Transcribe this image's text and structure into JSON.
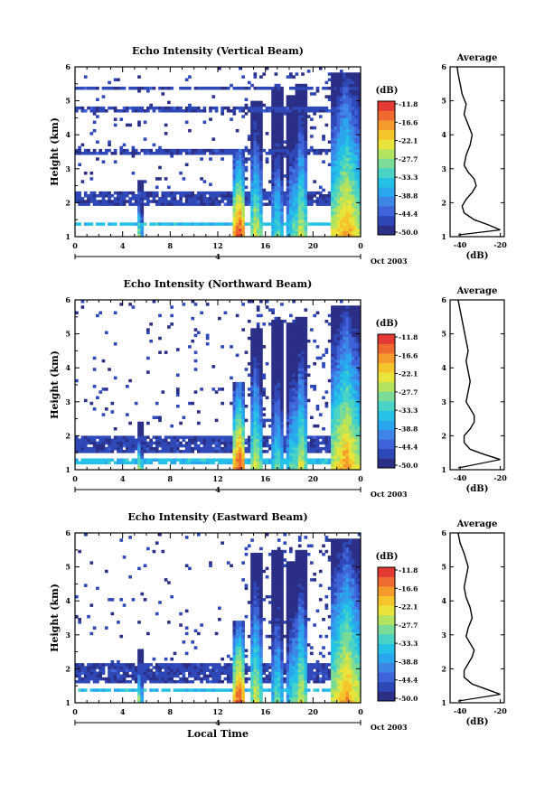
{
  "colorbar": {
    "unit_label": "(dB)",
    "ticks": [
      "-11.8",
      "-16.6",
      "-22.1",
      "-27.7",
      "-33.3",
      "-38.8",
      "-44.4",
      "-50.0"
    ],
    "colors": [
      "#2b2f86",
      "#2f48b8",
      "#3f63d8",
      "#3d86e6",
      "#2aa6ee",
      "#25c2e6",
      "#49d3c4",
      "#7bdc98",
      "#b4e35f",
      "#e8e43b",
      "#f5c52d",
      "#f59a2c",
      "#ef6a2e",
      "#e33a33"
    ]
  },
  "panels": [
    {
      "title": "Echo Intensity (Vertical Beam)",
      "ylabel": "Height (km)",
      "y_ticks": [
        "1",
        "2",
        "3",
        "4",
        "5",
        "6"
      ],
      "x_ticks": [
        "0",
        "4",
        "8",
        "12",
        "16",
        "20",
        "0"
      ],
      "date_tick": "4",
      "date_label": "Oct 2003",
      "avg_title": "Average",
      "avg_x_ticks": [
        "-40",
        "-20"
      ],
      "avg_xlabel": "(dB)",
      "avg_y_ticks": [
        "1",
        "2",
        "3",
        "4",
        "5",
        "6"
      ]
    },
    {
      "title": "Echo Intensity (Northward Beam)",
      "ylabel": "Height (km)",
      "y_ticks": [
        "1",
        "2",
        "3",
        "4",
        "5",
        "6"
      ],
      "x_ticks": [
        "0",
        "4",
        "8",
        "12",
        "16",
        "20",
        "0"
      ],
      "date_tick": "4",
      "date_label": "Oct 2003",
      "avg_title": "Average",
      "avg_x_ticks": [
        "-40",
        "-20"
      ],
      "avg_xlabel": "(dB)",
      "avg_y_ticks": [
        "1",
        "2",
        "3",
        "4",
        "5",
        "6"
      ]
    },
    {
      "title": "Echo Intensity (Eastward Beam)",
      "ylabel": "Height (km)",
      "y_ticks": [
        "1",
        "2",
        "3",
        "4",
        "5",
        "6"
      ],
      "x_ticks": [
        "0",
        "4",
        "8",
        "12",
        "16",
        "20",
        "0"
      ],
      "date_tick": "4",
      "date_label": "Oct 2003",
      "avg_title": "Average",
      "avg_x_ticks": [
        "-40",
        "-20"
      ],
      "avg_xlabel": "(dB)",
      "avg_y_ticks": [
        "1",
        "2",
        "3",
        "4",
        "5",
        "6"
      ],
      "xlabel": "Local Time"
    }
  ],
  "chart_data": [
    {
      "type": "heatmap",
      "title": "Echo Intensity (Vertical Beam)",
      "xlabel": "",
      "ylabel": "Height (km)",
      "xlim": [
        0,
        24
      ],
      "ylim": [
        1,
        6
      ],
      "colorbar_range": [
        -50.0,
        -11.8
      ],
      "echo_events": [
        {
          "time": 5.4,
          "top": 2.7,
          "peak": -27.7
        },
        {
          "time": 13.8,
          "top": 3.6,
          "peak": -11.8
        },
        {
          "time": 15.2,
          "top": 5.0,
          "peak": -22.1
        },
        {
          "time": 17.0,
          "top": 5.4,
          "peak": -27.7
        },
        {
          "time": 18.3,
          "top": 5.2,
          "peak": -27.7
        },
        {
          "time": 19.0,
          "top": 5.5,
          "peak": -22.1
        },
        {
          "time": 22.8,
          "top": 5.8,
          "peak": -16.6
        }
      ],
      "clear_air_layers": [
        {
          "bottom": 1.35,
          "top": 1.45,
          "level": -33.3
        },
        {
          "bottom": 1.9,
          "top": 2.35,
          "level": -44.4
        },
        {
          "bottom": 3.4,
          "top": 3.55,
          "level": -44.4
        },
        {
          "bottom": 4.7,
          "top": 4.8,
          "level": -44.4
        },
        {
          "bottom": 5.3,
          "top": 5.4,
          "level": -44.4
        }
      ]
    },
    {
      "type": "line",
      "title": "Average",
      "xlabel": "(dB)",
      "xlim": [
        -45,
        -18
      ],
      "ylim": [
        1,
        6
      ],
      "x": [
        -20,
        -26,
        -33,
        -38,
        -39,
        -37,
        -34,
        -32,
        -33,
        -36,
        -38,
        -37,
        -35,
        -34,
        -36,
        -38,
        -37,
        -39,
        -40,
        -41,
        -41.5
      ],
      "y": [
        1.2,
        1.35,
        1.5,
        1.7,
        1.9,
        2.1,
        2.3,
        2.5,
        2.7,
        2.9,
        3.1,
        3.4,
        3.7,
        4.0,
        4.3,
        4.6,
        4.9,
        5.2,
        5.5,
        5.8,
        6.0
      ]
    },
    {
      "type": "heatmap",
      "title": "Echo Intensity (Northward Beam)",
      "xlabel": "",
      "ylabel": "Height (km)",
      "xlim": [
        0,
        24
      ],
      "ylim": [
        1,
        6
      ],
      "colorbar_range": [
        -50.0,
        -11.8
      ],
      "echo_events": [
        {
          "time": 5.4,
          "top": 2.4,
          "peak": -27.7
        },
        {
          "time": 13.8,
          "top": 3.6,
          "peak": -11.8
        },
        {
          "time": 15.2,
          "top": 5.2,
          "peak": -22.1
        },
        {
          "time": 17.0,
          "top": 5.4,
          "peak": -27.7
        },
        {
          "time": 18.3,
          "top": 5.3,
          "peak": -27.7
        },
        {
          "time": 19.0,
          "top": 5.5,
          "peak": -22.1
        },
        {
          "time": 22.8,
          "top": 5.8,
          "peak": -16.6
        }
      ],
      "clear_air_layers": [
        {
          "bottom": 1.2,
          "top": 1.3,
          "level": -33.3
        },
        {
          "bottom": 1.5,
          "top": 2.0,
          "level": -44.4
        }
      ]
    },
    {
      "type": "line",
      "title": "Average",
      "xlabel": "(dB)",
      "xlim": [
        -45,
        -18
      ],
      "ylim": [
        1,
        6
      ],
      "x": [
        -20,
        -28,
        -35,
        -38,
        -38,
        -35,
        -33,
        -33,
        -35,
        -37,
        -36,
        -35,
        -36,
        -37,
        -36,
        -37,
        -38,
        -39,
        -40,
        -41
      ],
      "y": [
        1.3,
        1.45,
        1.6,
        1.8,
        2.0,
        2.2,
        2.4,
        2.6,
        2.8,
        3.0,
        3.3,
        3.6,
        3.9,
        4.2,
        4.5,
        4.8,
        5.1,
        5.4,
        5.7,
        6.0
      ]
    },
    {
      "type": "heatmap",
      "title": "Echo Intensity (Eastward Beam)",
      "xlabel": "Local Time",
      "ylabel": "Height (km)",
      "xlim": [
        0,
        24
      ],
      "ylim": [
        1,
        6
      ],
      "colorbar_range": [
        -50.0,
        -11.8
      ],
      "echo_events": [
        {
          "time": 5.4,
          "top": 2.6,
          "peak": -27.7
        },
        {
          "time": 13.8,
          "top": 3.4,
          "peak": -11.8
        },
        {
          "time": 15.2,
          "top": 5.4,
          "peak": -22.1
        },
        {
          "time": 17.0,
          "top": 5.5,
          "peak": -27.7
        },
        {
          "time": 18.3,
          "top": 5.2,
          "peak": -27.7
        },
        {
          "time": 19.0,
          "top": 5.5,
          "peak": -22.1
        },
        {
          "time": 22.8,
          "top": 5.8,
          "peak": -16.6
        }
      ],
      "clear_air_layers": [
        {
          "bottom": 1.3,
          "top": 1.45,
          "level": -33.3
        },
        {
          "bottom": 1.6,
          "top": 2.2,
          "level": -44.4
        }
      ]
    },
    {
      "type": "line",
      "title": "Average",
      "xlabel": "(dB)",
      "xlim": [
        -45,
        -18
      ],
      "ylim": [
        1,
        6
      ],
      "x": [
        -20,
        -27,
        -34,
        -38,
        -38,
        -36,
        -34,
        -33,
        -35,
        -37,
        -36,
        -34,
        -35,
        -37,
        -38,
        -37,
        -36,
        -38,
        -40,
        -41
      ],
      "y": [
        1.25,
        1.4,
        1.55,
        1.75,
        1.95,
        2.15,
        2.35,
        2.55,
        2.75,
        2.95,
        3.2,
        3.5,
        3.8,
        4.1,
        4.4,
        4.7,
        5.0,
        5.4,
        5.7,
        6.0
      ]
    }
  ]
}
